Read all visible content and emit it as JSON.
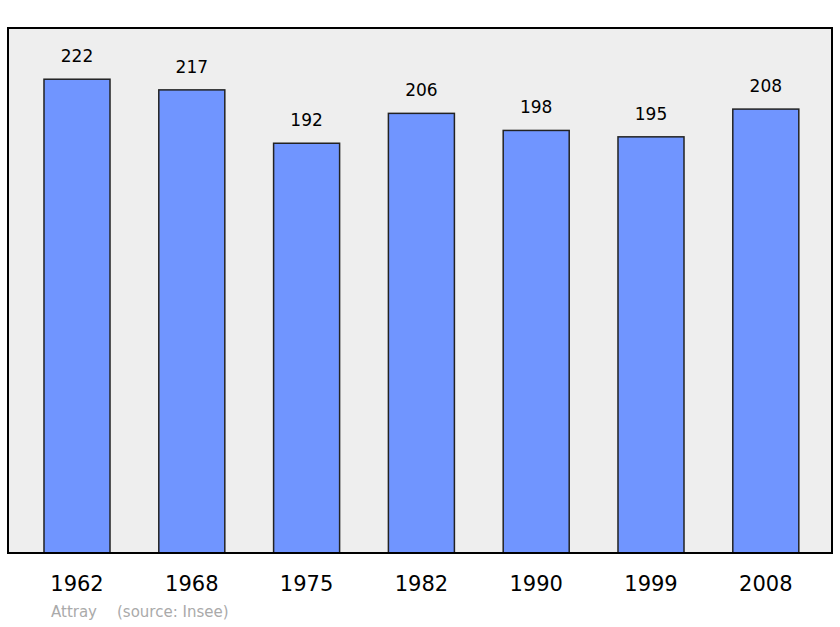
{
  "chart_data": {
    "type": "bar",
    "categories": [
      "1962",
      "1968",
      "1975",
      "1982",
      "1990",
      "1999",
      "2008"
    ],
    "values": [
      222,
      217,
      192,
      206,
      198,
      195,
      208
    ],
    "color": "#7095ff",
    "ylim": [
      0,
      246
    ],
    "data_labels": true,
    "tick_labels": "x",
    "grid": false,
    "annotations": [
      "Attray",
      "(source: Insee)"
    ]
  }
}
